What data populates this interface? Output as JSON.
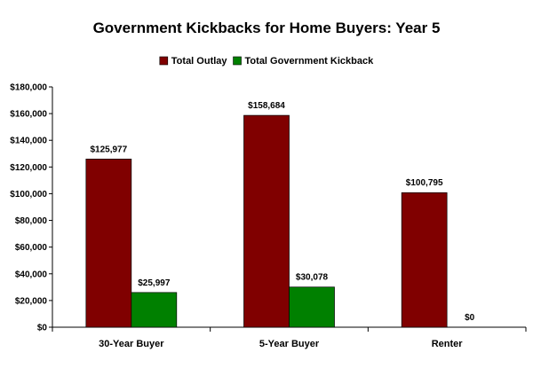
{
  "chart_data": {
    "type": "bar",
    "title": "Government Kickbacks for Home Buyers: Year 5",
    "categories": [
      "30-Year Buyer",
      "5-Year Buyer",
      "Renter"
    ],
    "series": [
      {
        "name": "Total Outlay",
        "color": "#800000",
        "values": [
          125977,
          158684,
          100795
        ],
        "labels": [
          "$125,977",
          "$158,684",
          "$100,795"
        ]
      },
      {
        "name": "Total Government Kickback",
        "color": "#008000",
        "values": [
          25997,
          30078,
          0
        ],
        "labels": [
          "$25,997",
          "$30,078",
          "$0"
        ]
      }
    ],
    "ylim": [
      0,
      180000
    ],
    "yticks": [
      0,
      20000,
      40000,
      60000,
      80000,
      100000,
      120000,
      140000,
      160000,
      180000
    ],
    "ytick_labels": [
      "$0",
      "$20,000",
      "$40,000",
      "$60,000",
      "$80,000",
      "$100,000",
      "$120,000",
      "$140,000",
      "$160,000",
      "$180,000"
    ],
    "xlabel": "",
    "ylabel": "",
    "legend_position": "top",
    "grid": false
  }
}
